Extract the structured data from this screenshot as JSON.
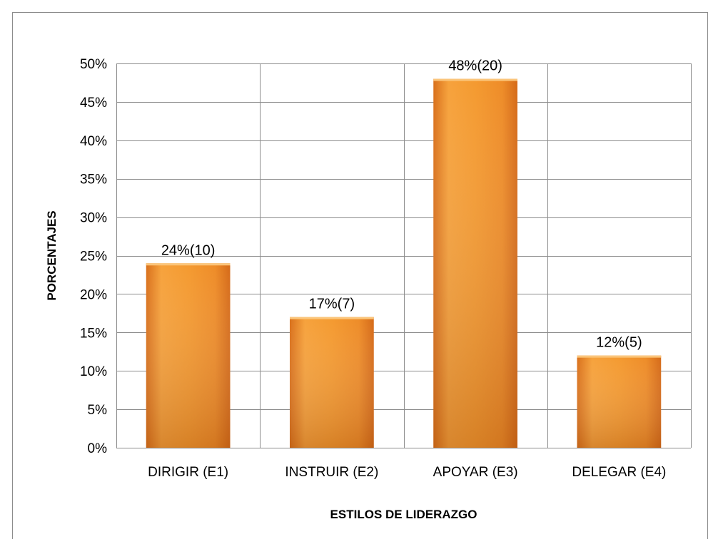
{
  "chart_data": {
    "type": "bar",
    "title": "",
    "xlabel": "ESTILOS DE LIDERAZGO",
    "ylabel": "PORCENTAJES",
    "categories": [
      "DIRIGIR (E1)",
      "INSTRUIR (E2)",
      "APOYAR (E3)",
      "DELEGAR (E4)"
    ],
    "values": [
      24,
      17,
      48,
      12
    ],
    "data_labels": [
      "24%(10)",
      "17%(7)",
      "48%(20)",
      "12%(5)"
    ],
    "ylim": [
      0,
      50
    ],
    "ytick_step": 5,
    "ytick_labels": [
      "0%",
      "5%",
      "10%",
      "15%",
      "20%",
      "25%",
      "30%",
      "35%",
      "40%",
      "45%",
      "50%"
    ],
    "grid": true,
    "legend": "none",
    "bar_color": "#f29224"
  }
}
